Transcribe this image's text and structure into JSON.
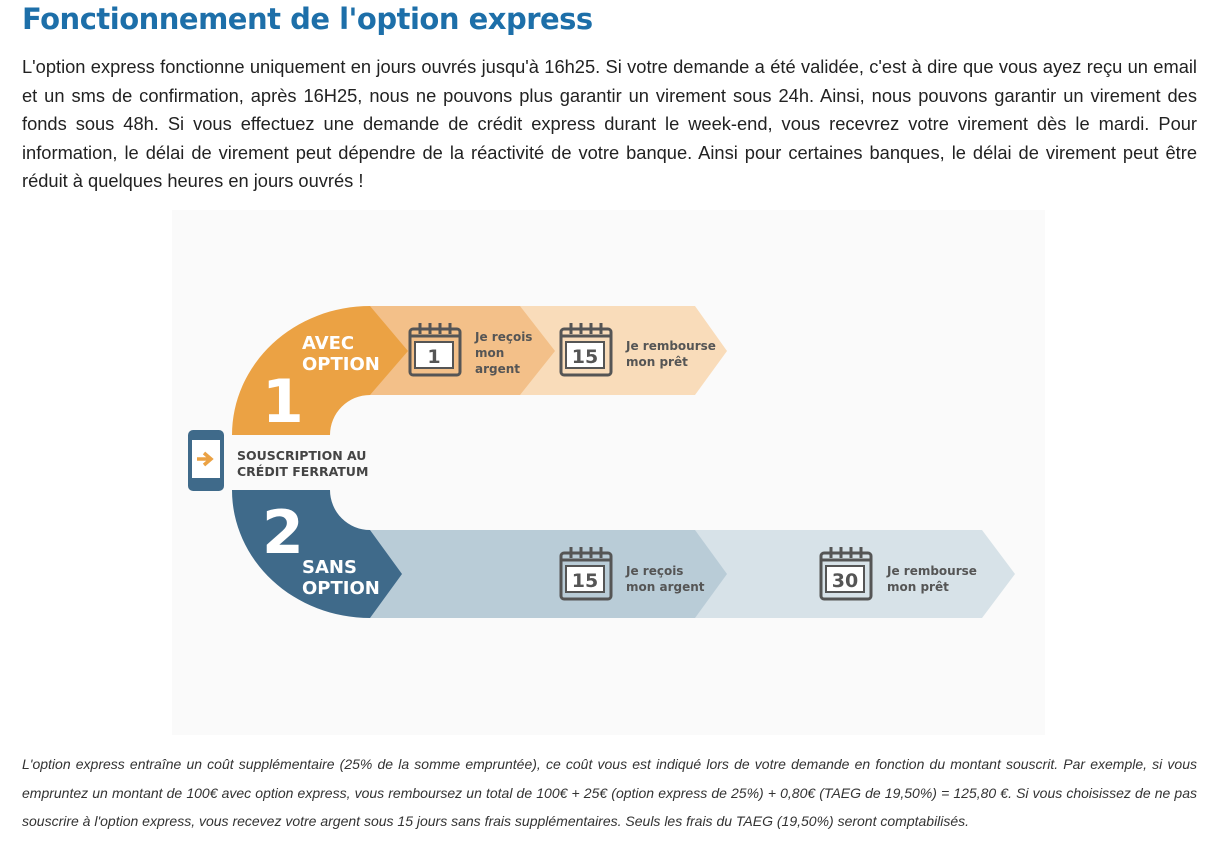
{
  "page": {
    "title": "Fonctionnement de l'option express",
    "intro": "L'option express fonctionne uniquement en jours ouvrés jusqu'à 16h25. Si votre demande a été validée, c'est à dire que vous ayez reçu un email et un sms de confirmation, après 16H25, nous ne pouvons plus garantir un virement sous 24h. Ainsi, nous pouvons garantir un virement des fonds sous 48h. Si vous effectuez une demande de crédit express durant le week-end, vous recevrez votre virement dès le mardi. Pour information, le délai de virement peut dépendre de la réactivité de votre banque. Ainsi pour certaines banques, le délai de virement peut être réduit à quelques heures en jours ouvrés !",
    "diagram": {
      "start": [
        "SOUSCRIPTION AU",
        "CRÉDIT FERRATUM"
      ],
      "with_option": {
        "number": "1",
        "label": [
          "AVEC",
          "OPTION"
        ],
        "steps": [
          {
            "day": "1",
            "text": [
              "Je reçois",
              "mon",
              "argent"
            ]
          },
          {
            "day": "15",
            "text": [
              "Je rembourse",
              "mon prêt"
            ]
          }
        ]
      },
      "without_option": {
        "number": "2",
        "label": [
          "SANS",
          "OPTION"
        ],
        "steps": [
          {
            "day": "15",
            "text": [
              "Je reçois",
              "mon argent"
            ]
          },
          {
            "day": "30",
            "text": [
              "Je rembourse",
              "mon prêt"
            ]
          }
        ]
      }
    },
    "footnote": "L'option express entraîne un coût supplémentaire (25% de la somme empruntée), ce coût vous est indiqué lors de votre demande en fonction du montant souscrit. Par exemple, si vous empruntez un montant de 100€ avec option express, vous remboursez un total de 100€ + 25€ (option express de 25%) + 0,80€ (TAEG de 19,50%) = 125,80 €. Si vous choisissez de ne pas souscrire à l'option express, vous recevez votre argent sous 15 jours sans frais supplémentaires. Seuls les frais du TAEG (19,50%) seront comptabilisés."
  }
}
